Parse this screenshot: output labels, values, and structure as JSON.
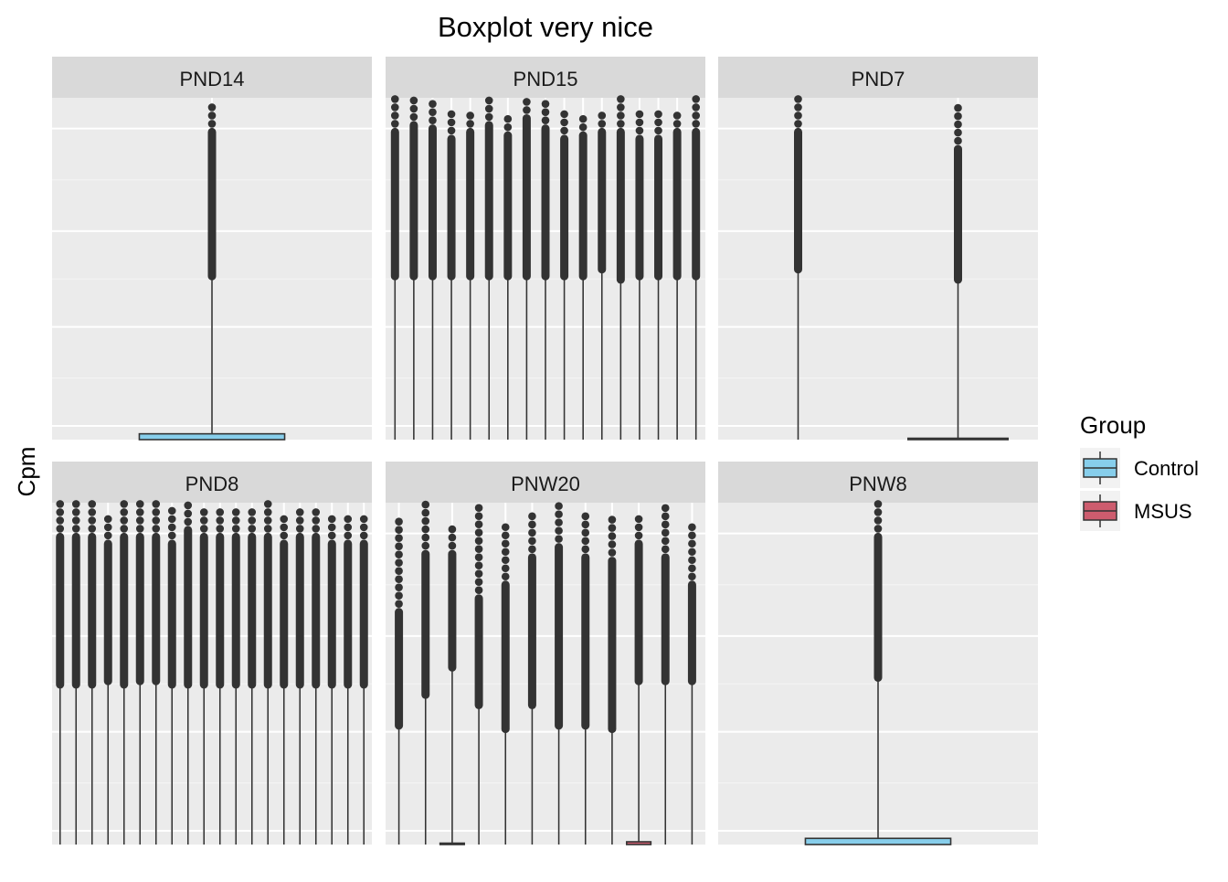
{
  "chart_data": {
    "type": "boxplot",
    "title": "Boxplot very nice",
    "ylabel": "Cpm",
    "xlabel": "",
    "facet_layout": "2 rows x 3 columns, free y scales",
    "grid": true,
    "y_tick_labels_shown": false,
    "legend": {
      "title": "Group",
      "position": "right",
      "entries": [
        {
          "label": "Control",
          "color": "#87CEEB"
        },
        {
          "label": "MSUS",
          "color": "#CD5C6E"
        }
      ]
    },
    "facets": [
      {
        "label": "PND14",
        "boxes": [
          {
            "group": "Control",
            "box_bottom": 0.0,
            "box_top": 0.017,
            "whisker_top": 0.47,
            "outlier_max": 0.98,
            "outlier_dense_to": 0.9
          }
        ]
      },
      {
        "label": "PND15",
        "boxes": [
          {
            "group": "Control",
            "whisker_top": 0.47,
            "outlier_max": 1.0,
            "outlier_dense_to": 0.9
          },
          {
            "group": "Control",
            "whisker_top": 0.47,
            "outlier_max": 1.0,
            "outlier_dense_to": 0.92
          },
          {
            "group": "Control",
            "whisker_top": 0.47,
            "outlier_max": 1.0,
            "outlier_dense_to": 0.91
          },
          {
            "group": "Control",
            "whisker_top": 0.47,
            "outlier_max": 0.96,
            "outlier_dense_to": 0.88
          },
          {
            "group": "Control",
            "whisker_top": 0.47,
            "outlier_max": 0.96,
            "outlier_dense_to": 0.9
          },
          {
            "group": "Control",
            "whisker_top": 0.47,
            "outlier_max": 1.0,
            "outlier_dense_to": 0.92
          },
          {
            "group": "Control",
            "whisker_top": 0.47,
            "outlier_max": 0.96,
            "outlier_dense_to": 0.89
          },
          {
            "group": "Control",
            "whisker_top": 0.47,
            "outlier_max": 1.0,
            "outlier_dense_to": 0.94
          },
          {
            "group": "Control",
            "whisker_top": 0.47,
            "outlier_max": 0.99,
            "outlier_dense_to": 0.91
          },
          {
            "group": "Control",
            "whisker_top": 0.47,
            "outlier_max": 0.96,
            "outlier_dense_to": 0.88
          },
          {
            "group": "Control",
            "whisker_top": 0.47,
            "outlier_max": 0.96,
            "outlier_dense_to": 0.89
          },
          {
            "group": "Control",
            "whisker_top": 0.49,
            "outlier_max": 0.96,
            "outlier_dense_to": 0.9
          },
          {
            "group": "Control",
            "whisker_top": 0.46,
            "outlier_max": 1.0,
            "outlier_dense_to": 0.9
          },
          {
            "group": "Control",
            "whisker_top": 0.47,
            "outlier_max": 0.96,
            "outlier_dense_to": 0.88
          },
          {
            "group": "Control",
            "whisker_top": 0.47,
            "outlier_max": 0.96,
            "outlier_dense_to": 0.88
          },
          {
            "group": "Control",
            "whisker_top": 0.47,
            "outlier_max": 0.96,
            "outlier_dense_to": 0.9
          },
          {
            "group": "Control",
            "whisker_top": 0.47,
            "outlier_max": 1.0,
            "outlier_dense_to": 0.9
          }
        ]
      },
      {
        "label": "PND7",
        "boxes": [
          {
            "group": "Control",
            "whisker_top": 0.49,
            "outlier_max": 1.0,
            "outlier_dense_to": 0.9
          },
          {
            "group": "Control",
            "box_bottom": 0.0,
            "box_top": 0.004,
            "whisker_top": 0.46,
            "outlier_max": 0.97,
            "outlier_dense_to": 0.85
          }
        ]
      },
      {
        "label": "PND8",
        "boxes": [
          {
            "group": "Control",
            "whisker_top": 0.46,
            "outlier_max": 1.0,
            "outlier_dense_to": 0.9
          },
          {
            "group": "Control",
            "whisker_top": 0.46,
            "outlier_max": 1.0,
            "outlier_dense_to": 0.9
          },
          {
            "group": "Control",
            "whisker_top": 0.46,
            "outlier_max": 1.0,
            "outlier_dense_to": 0.9
          },
          {
            "group": "Control",
            "whisker_top": 0.47,
            "outlier_max": 0.96,
            "outlier_dense_to": 0.88
          },
          {
            "group": "Control",
            "whisker_top": 0.46,
            "outlier_max": 1.0,
            "outlier_dense_to": 0.9
          },
          {
            "group": "Control",
            "whisker_top": 0.47,
            "outlier_max": 1.0,
            "outlier_dense_to": 0.9
          },
          {
            "group": "Control",
            "whisker_top": 0.47,
            "outlier_max": 1.0,
            "outlier_dense_to": 0.9
          },
          {
            "group": "Control",
            "whisker_top": 0.46,
            "outlier_max": 0.98,
            "outlier_dense_to": 0.88
          },
          {
            "group": "Control",
            "whisker_top": 0.46,
            "outlier_max": 1.0,
            "outlier_dense_to": 0.92
          },
          {
            "group": "Control",
            "whisker_top": 0.46,
            "outlier_max": 0.98,
            "outlier_dense_to": 0.9
          },
          {
            "group": "Control",
            "whisker_top": 0.46,
            "outlier_max": 0.98,
            "outlier_dense_to": 0.9
          },
          {
            "group": "Control",
            "whisker_top": 0.46,
            "outlier_max": 0.98,
            "outlier_dense_to": 0.9
          },
          {
            "group": "Control",
            "whisker_top": 0.46,
            "outlier_max": 0.98,
            "outlier_dense_to": 0.9
          },
          {
            "group": "Control",
            "whisker_top": 0.46,
            "outlier_max": 1.0,
            "outlier_dense_to": 0.9
          },
          {
            "group": "Control",
            "whisker_top": 0.46,
            "outlier_max": 0.96,
            "outlier_dense_to": 0.88
          },
          {
            "group": "Control",
            "whisker_top": 0.46,
            "outlier_max": 0.98,
            "outlier_dense_to": 0.9
          },
          {
            "group": "Control",
            "whisker_top": 0.46,
            "outlier_max": 0.98,
            "outlier_dense_to": 0.9
          },
          {
            "group": "Control",
            "whisker_top": 0.46,
            "outlier_max": 0.96,
            "outlier_dense_to": 0.88
          },
          {
            "group": "Control",
            "whisker_top": 0.46,
            "outlier_max": 0.96,
            "outlier_dense_to": 0.88
          },
          {
            "group": "Control",
            "whisker_top": 0.46,
            "outlier_max": 0.96,
            "outlier_dense_to": 0.88
          }
        ]
      },
      {
        "label": "PNW20",
        "boxes": [
          {
            "group": "Control",
            "whisker_top": 0.34,
            "outlier_max": 0.96,
            "outlier_dense_to": 0.68
          },
          {
            "group": "Control",
            "whisker_top": 0.43,
            "outlier_max": 1.0,
            "outlier_dense_to": 0.85
          },
          {
            "group": "Control",
            "box_bottom": 0.0,
            "box_top": 0.004,
            "whisker_top": 0.51,
            "outlier_max": 0.93,
            "outlier_dense_to": 0.85
          },
          {
            "group": "Control",
            "whisker_top": 0.4,
            "outlier_max": 1.0,
            "outlier_dense_to": 0.72
          },
          {
            "group": "Control",
            "whisker_top": 0.33,
            "outlier_max": 0.95,
            "outlier_dense_to": 0.76
          },
          {
            "group": "Control",
            "whisker_top": 0.4,
            "outlier_max": 0.97,
            "outlier_dense_to": 0.84
          },
          {
            "group": "Control",
            "whisker_top": 0.34,
            "outlier_max": 1.0,
            "outlier_dense_to": 0.87
          },
          {
            "group": "Control",
            "whisker_top": 0.34,
            "outlier_max": 0.97,
            "outlier_dense_to": 0.84
          },
          {
            "group": "Control",
            "whisker_top": 0.33,
            "outlier_max": 0.96,
            "outlier_dense_to": 0.83
          },
          {
            "group": "MSUS",
            "box_bottom": 0.0,
            "box_top": 0.008,
            "whisker_top": 0.47,
            "outlier_max": 0.96,
            "outlier_dense_to": 0.88
          },
          {
            "group": "Control",
            "whisker_top": 0.47,
            "outlier_max": 1.0,
            "outlier_dense_to": 0.84
          },
          {
            "group": "Control",
            "whisker_top": 0.47,
            "outlier_max": 0.95,
            "outlier_dense_to": 0.76
          }
        ]
      },
      {
        "label": "PNW8",
        "boxes": [
          {
            "group": "Control",
            "box_bottom": 0.0,
            "box_top": 0.018,
            "whisker_top": 0.48,
            "outlier_max": 1.0,
            "outlier_dense_to": 0.9
          }
        ]
      }
    ]
  }
}
